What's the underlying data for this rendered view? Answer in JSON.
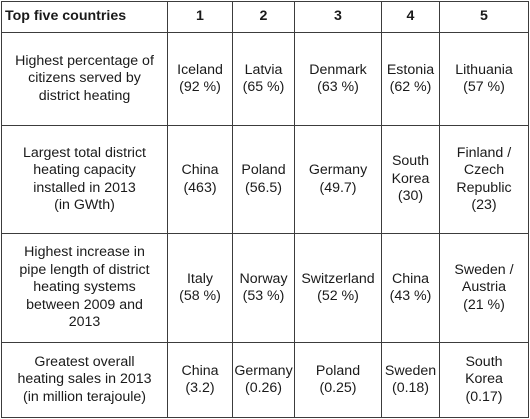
{
  "header": {
    "title": "Top five countries",
    "ranks": [
      "1",
      "2",
      "3",
      "4",
      "5"
    ]
  },
  "rows": [
    {
      "category": "Highest percentage of\ncitizens served by\ndistrict heating",
      "values": [
        "Iceland\n(92 %)",
        "Latvia\n(65 %)",
        "Denmark\n(63 %)",
        "Estonia\n(62 %)",
        "Lithuania\n(57 %)"
      ]
    },
    {
      "category": "Largest total district\nheating capacity\ninstalled in 2013\n(in GWth)",
      "values": [
        "China\n(463)",
        "Poland\n(56.5)",
        "Germany\n(49.7)",
        "South\nKorea\n(30)",
        "Finland /\nCzech\nRepublic\n(23)"
      ]
    },
    {
      "category": "Highest increase in\npipe length of district\nheating systems\nbetween 2009 and\n2013",
      "values": [
        "Italy\n(58 %)",
        "Norway\n(53 %)",
        "Switzerland\n(52 %)",
        "China\n(43 %)",
        "Sweden /\nAustria\n(21 %)"
      ]
    },
    {
      "category": "Greatest overall\nheating sales in 2013\n(in million terajoule)",
      "values": [
        "China\n(3.2)",
        "Germany\n(0.26)",
        "Poland\n(0.25)",
        "Sweden\n(0.18)",
        "South\nKorea\n(0.17)"
      ]
    }
  ]
}
